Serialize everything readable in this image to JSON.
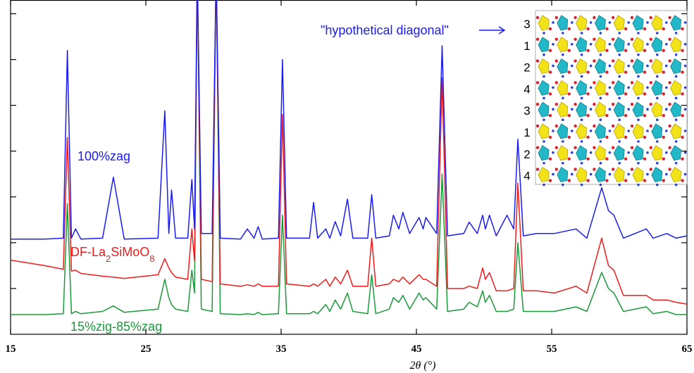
{
  "chart_data": {
    "type": "line",
    "x_label": "2θ (°)",
    "xlim": [
      15,
      65
    ],
    "xticks": [
      15,
      25,
      35,
      45,
      55,
      65
    ],
    "ylim": [
      0,
      7.3
    ],
    "yticks": [
      1,
      2,
      3,
      4,
      5,
      6,
      7
    ],
    "annotations": [
      "\"hypothetical diagonal\""
    ],
    "inset_labels": [
      "3",
      "1",
      "2",
      "4",
      "3",
      "1",
      "2",
      "4"
    ],
    "x": [
      15,
      17.5,
      18.9,
      19.2,
      19.5,
      19.8,
      20.2,
      21.8,
      22.6,
      23.4,
      25.9,
      26.4,
      26.7,
      26.9,
      27.2,
      28.1,
      28.4,
      28.6,
      28.8,
      29.1,
      29.9,
      30.2,
      30.5,
      32.0,
      32.5,
      33.0,
      33.3,
      33.6,
      34.8,
      35.1,
      35.4,
      37.1,
      37.4,
      37.7,
      38.3,
      38.6,
      39.0,
      39.4,
      39.9,
      40.3,
      41.4,
      41.7,
      42.0,
      43.0,
      43.3,
      43.7,
      44.0,
      44.5,
      45.2,
      45.5,
      45.7,
      46.5,
      46.9,
      47.3,
      48.5,
      48.9,
      49.5,
      49.9,
      50.1,
      50.4,
      50.9,
      51.7,
      52.2,
      52.5,
      52.9,
      53.9,
      55.2,
      56.8,
      57.6,
      58.7,
      59.2,
      59.6,
      60.3,
      62.0,
      62.5,
      63.5,
      64.2,
      65
    ],
    "series": [
      {
        "name": "100%zag",
        "color": "#1c1cf0",
        "values": [
          2.08,
          2.08,
          2.1,
          6.2,
          2.1,
          2.3,
          2.08,
          2.1,
          3.43,
          2.08,
          2.1,
          4.88,
          2.2,
          3.15,
          2.1,
          2.1,
          3.38,
          2.3,
          8,
          2.2,
          2.2,
          8,
          2.1,
          2.08,
          2.3,
          2.1,
          2.35,
          2.08,
          2.1,
          6.0,
          2.1,
          2.1,
          2.88,
          2.1,
          2.3,
          2.1,
          2.46,
          2.15,
          2.95,
          2.1,
          2.1,
          3.05,
          2.1,
          2.15,
          2.6,
          2.3,
          2.66,
          2.2,
          2.55,
          2.3,
          2.55,
          2.2,
          6.3,
          2.15,
          2.2,
          2.45,
          2.2,
          2.6,
          2.3,
          2.6,
          2.15,
          2.6,
          2.3,
          4.26,
          2.15,
          2.2,
          2.2,
          2.3,
          2.1,
          3.2,
          2.7,
          2.6,
          2.1,
          2.3,
          2.1,
          2.2,
          2.1,
          2.15
        ]
      },
      {
        "name": "DF-La2SiMoO8",
        "color": "#f01c1c",
        "values": [
          1.62,
          1.5,
          1.42,
          4.3,
          1.38,
          1.4,
          1.33,
          1.27,
          1.25,
          1.22,
          1.3,
          1.65,
          1.45,
          1.35,
          1.25,
          1.2,
          2.3,
          1.6,
          8,
          1.2,
          1.15,
          8,
          1.1,
          1.05,
          1.08,
          1.05,
          1.1,
          1.05,
          1.05,
          4.8,
          1.1,
          1.05,
          1.1,
          1.05,
          1.2,
          1.05,
          1.25,
          1.1,
          1.4,
          1.05,
          1.05,
          2.1,
          1.05,
          1.1,
          1.2,
          1.15,
          1.25,
          1.1,
          1.3,
          1.2,
          1.2,
          1.05,
          5.6,
          1.0,
          1.0,
          1.05,
          1.0,
          1.45,
          1.2,
          1.35,
          0.95,
          0.95,
          1.0,
          3.3,
          0.95,
          0.95,
          0.9,
          1.05,
          0.9,
          2.1,
          1.5,
          1.4,
          0.85,
          0.85,
          0.75,
          0.75,
          0.7,
          0.66
        ]
      },
      {
        "name": "15%zig-85%zag",
        "color": "#1a9a3a",
        "values": [
          0.43,
          0.43,
          0.45,
          2.85,
          0.45,
          0.5,
          0.45,
          0.5,
          0.62,
          0.48,
          0.55,
          1.2,
          0.8,
          0.65,
          0.55,
          0.5,
          1.4,
          0.9,
          8,
          0.55,
          0.5,
          8,
          0.45,
          0.43,
          0.45,
          0.43,
          0.48,
          0.43,
          0.45,
          2.6,
          0.45,
          0.45,
          0.5,
          0.45,
          0.65,
          0.5,
          0.75,
          0.55,
          0.9,
          0.5,
          0.45,
          1.3,
          0.45,
          0.55,
          0.8,
          0.7,
          0.85,
          0.55,
          0.9,
          0.75,
          0.8,
          0.55,
          3.5,
          0.5,
          0.55,
          0.7,
          0.6,
          0.95,
          0.7,
          0.85,
          0.5,
          0.5,
          0.55,
          2.0,
          0.5,
          0.5,
          0.5,
          0.6,
          0.5,
          1.35,
          1.0,
          0.9,
          0.5,
          0.6,
          0.45,
          0.5,
          0.43,
          0.43
        ]
      }
    ]
  }
}
